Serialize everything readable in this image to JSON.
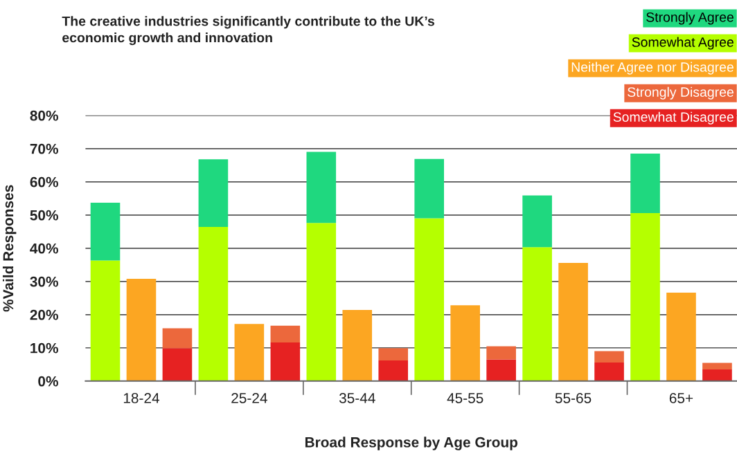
{
  "chart_data": {
    "type": "bar",
    "stacked": true,
    "title": "The creative industries significantly contribute to the UK’s\neconomic growth and innovation",
    "xlabel": "Broad Response by Age Group",
    "ylabel": "%Vaild Responses",
    "categories": [
      null,
      "18-24",
      null,
      null,
      "25-24",
      null,
      null,
      "35-44",
      null,
      null,
      "45-55",
      null,
      null,
      "55-65",
      null,
      null,
      "65+",
      null
    ],
    "series": [
      {
        "name": "Somewhat Agree",
        "color": "#b5ff00",
        "values": [
          36.3,
          null,
          null,
          46.4,
          null,
          null,
          47.6,
          null,
          null,
          49.0,
          null,
          null,
          40.3,
          null,
          null,
          50.6,
          null,
          null
        ]
      },
      {
        "name": "Strongly Agree",
        "color": "#1fd87f",
        "values": [
          17.4,
          null,
          null,
          20.4,
          null,
          null,
          21.4,
          null,
          null,
          17.9,
          null,
          null,
          15.6,
          null,
          null,
          17.9,
          null,
          null
        ]
      },
      {
        "name": "Neither Agree nor Disagree",
        "color": "#fca622",
        "values": [
          null,
          30.8,
          null,
          null,
          17.2,
          null,
          null,
          21.4,
          null,
          null,
          22.8,
          null,
          null,
          35.6,
          null,
          null,
          26.6,
          null
        ]
      },
      {
        "name": "Somewhat Disagree",
        "color": "#e62222",
        "values": [
          null,
          null,
          9.9,
          null,
          null,
          11.6,
          null,
          null,
          6.2,
          null,
          null,
          6.5,
          null,
          null,
          5.6,
          null,
          null,
          3.5
        ]
      },
      {
        "name": "Strongly Disagree",
        "color": "#ec683c",
        "values": [
          null,
          null,
          6.0,
          null,
          null,
          5.1,
          null,
          null,
          3.7,
          null,
          null,
          4.0,
          null,
          null,
          3.4,
          null,
          null,
          2.0
        ]
      }
    ],
    "ylim": [
      0,
      80
    ],
    "yticks": [
      {
        "value": 0,
        "label": "0%"
      },
      {
        "value": 10,
        "label": "10%"
      },
      {
        "value": 20,
        "label": "20%"
      },
      {
        "value": 30,
        "label": "30%"
      },
      {
        "value": 40,
        "label": "40%"
      },
      {
        "value": 50,
        "label": "50%"
      },
      {
        "value": 60,
        "label": "60%"
      },
      {
        "value": 70,
        "label": "70%"
      },
      {
        "value": 80,
        "label": "80%"
      }
    ],
    "grid": "y",
    "legend": "top right"
  }
}
